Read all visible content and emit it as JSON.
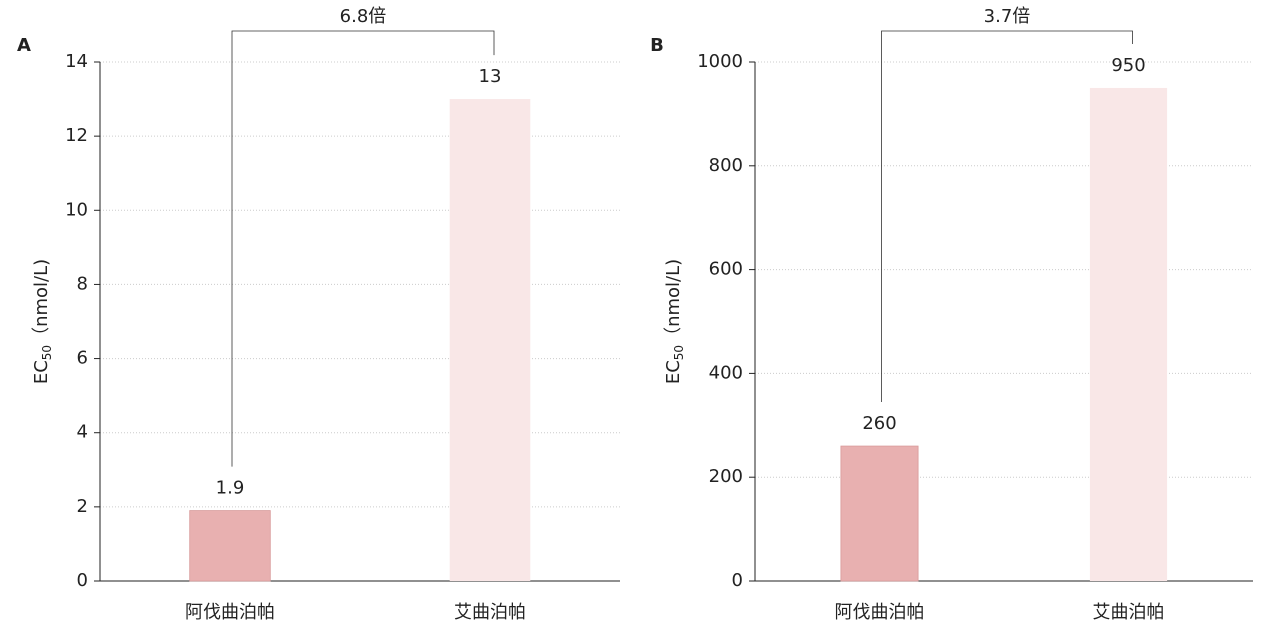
{
  "chart_data": [
    {
      "type": "bar",
      "panel": "A",
      "ylabel": [
        "EC",
        "50",
        "（nmol/L)"
      ],
      "categories": [
        "阿伐曲泊帕",
        "艾曲泊帕"
      ],
      "values": [
        1.9,
        13
      ],
      "colors": [
        "#e8b0b0",
        "#f9e7e7"
      ],
      "ylim": [
        0,
        14
      ],
      "yticks": [
        0,
        2,
        4,
        6,
        8,
        10,
        12,
        14
      ],
      "grid": true,
      "annotation": "6.8倍"
    },
    {
      "type": "bar",
      "panel": "B",
      "ylabel": [
        "EC",
        "50",
        "（nmol/L)"
      ],
      "categories": [
        "阿伐曲泊帕",
        "艾曲泊帕"
      ],
      "values": [
        260,
        950
      ],
      "colors": [
        "#e8b0b0",
        "#f9e7e7"
      ],
      "ylim": [
        0,
        1000
      ],
      "yticks": [
        0,
        200,
        400,
        600,
        800,
        1000
      ],
      "grid": true,
      "annotation": "3.7倍"
    }
  ]
}
